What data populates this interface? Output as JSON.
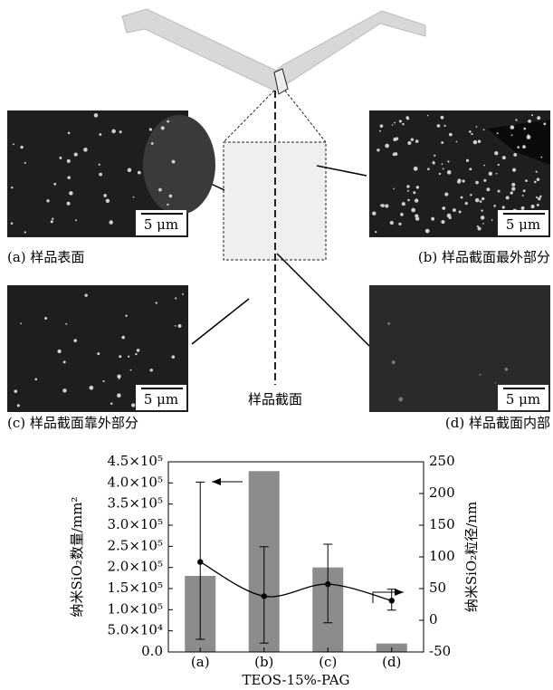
{
  "figure": {
    "panels": [
      {
        "label": "(a) 样品表面",
        "scale": "5 μm"
      },
      {
        "label": "(b) 样品截面最外部分",
        "scale": "5 μm"
      },
      {
        "label": "(c) 样品截面靠外部分",
        "scale": "5 μm"
      },
      {
        "label": "(d) 样品截面内部",
        "scale": "5 μm"
      }
    ],
    "section_label": "样品截面"
  },
  "chart_data": {
    "type": "bar",
    "xlabel": "TEOS-15%-PAG",
    "ylabel": "纳米SiO₂数量/mm²",
    "y2label": "纳米SiO₂粒径/nm",
    "categories": [
      "(a)",
      "(b)",
      "(c)",
      "(d)"
    ],
    "ylim": [
      0,
      450000
    ],
    "yticks": [
      {
        "value": 0,
        "label": "0.0"
      },
      {
        "value": 50000,
        "label": "5.0×10⁴"
      },
      {
        "value": 100000,
        "label": "1.0×10⁵"
      },
      {
        "value": 150000,
        "label": "1.5×10⁵"
      },
      {
        "value": 200000,
        "label": "2.0×10⁵"
      },
      {
        "value": 250000,
        "label": "2.5×10⁵"
      },
      {
        "value": 300000,
        "label": "3.0×10⁵"
      },
      {
        "value": 350000,
        "label": "3.5×10⁵"
      },
      {
        "value": 400000,
        "label": "4.0×10⁵"
      },
      {
        "value": 450000,
        "label": "4.5×10⁵"
      }
    ],
    "y2lim": [
      -50,
      250
    ],
    "y2ticks": [
      -50,
      0,
      50,
      100,
      150,
      200,
      250
    ],
    "series": [
      {
        "type": "bar",
        "color": "#8c8c8c",
        "values": [
          180000,
          428000,
          200000,
          20000
        ]
      },
      {
        "type": "line",
        "axis": "y2",
        "color": "#000000",
        "values": [
          92,
          38,
          57,
          31
        ],
        "error_low": [
          -30,
          -36,
          -4,
          16
        ],
        "error_high": [
          218,
          116,
          120,
          49
        ]
      }
    ]
  }
}
